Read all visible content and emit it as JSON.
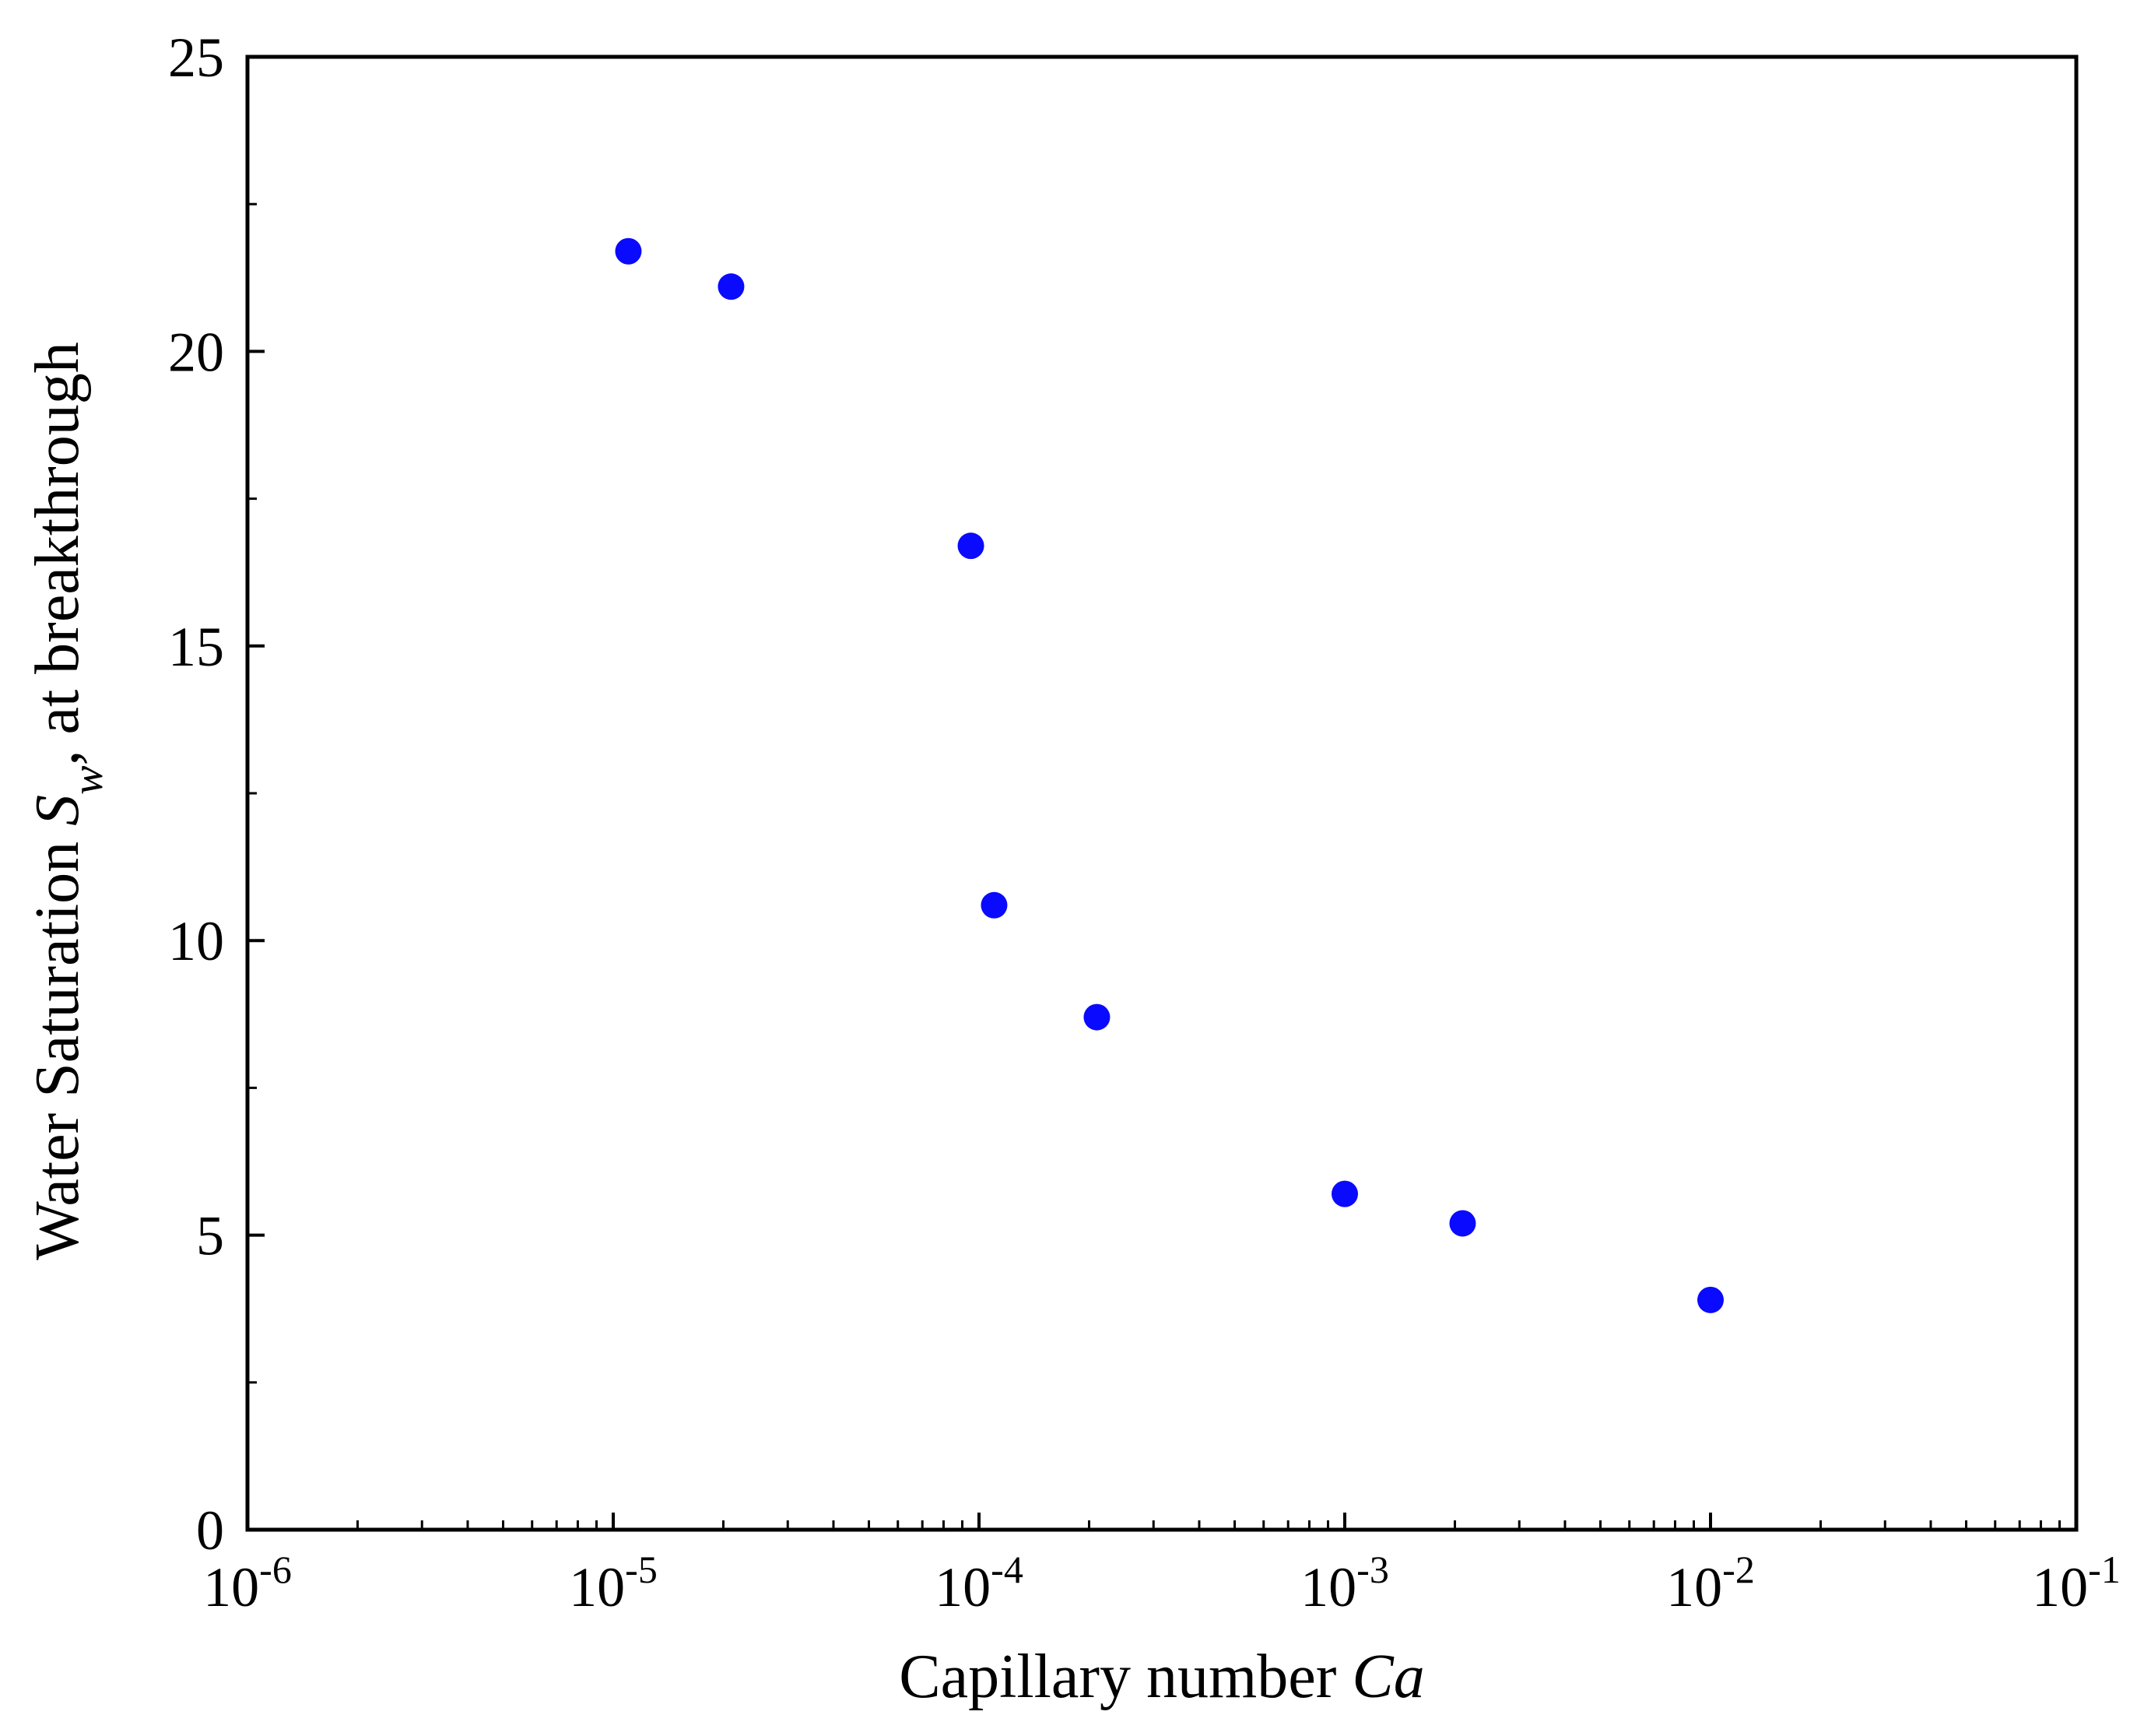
{
  "chart_data": {
    "type": "scatter",
    "title": "",
    "xlabel": "Capillary number",
    "xlabel_symbol": "Ca",
    "ylabel_prefix": "Water Saturation",
    "ylabel_symbol": "S",
    "ylabel_subscript": "w",
    "ylabel_suffix": ", at breakthrough",
    "x_scale": "log",
    "xlim": [
      1e-06,
      0.1
    ],
    "ylim": [
      0,
      25
    ],
    "x_ticks": [
      {
        "base": "10",
        "exp": "-6",
        "value": 1e-06
      },
      {
        "base": "10",
        "exp": "-5",
        "value": 1e-05
      },
      {
        "base": "10",
        "exp": "-4",
        "value": 0.0001
      },
      {
        "base": "10",
        "exp": "-3",
        "value": 0.001
      },
      {
        "base": "10",
        "exp": "-2",
        "value": 0.01
      },
      {
        "base": "10",
        "exp": "-1",
        "value": 0.1
      }
    ],
    "y_ticks": [
      {
        "label": "0",
        "value": 0
      },
      {
        "label": "5",
        "value": 5
      },
      {
        "label": "10",
        "value": 10
      },
      {
        "label": "15",
        "value": 15
      },
      {
        "label": "20",
        "value": 20
      },
      {
        "label": "25",
        "value": 25
      }
    ],
    "grid": false,
    "marker_color": "#0a0aff",
    "points": [
      {
        "x": 1.1e-05,
        "y": 21.7
      },
      {
        "x": 2.1e-05,
        "y": 21.1
      },
      {
        "x": 9.5e-05,
        "y": 16.7
      },
      {
        "x": 0.00011,
        "y": 10.6
      },
      {
        "x": 0.00021,
        "y": 8.7
      },
      {
        "x": 0.001,
        "y": 5.7
      },
      {
        "x": 0.0021,
        "y": 5.2
      },
      {
        "x": 0.01,
        "y": 3.9
      }
    ]
  }
}
